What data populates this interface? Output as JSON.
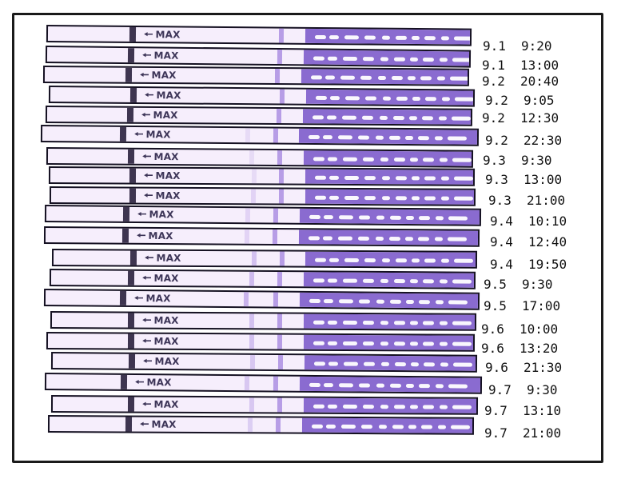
{
  "max_label": "MAX",
  "arrow_glyph": "🠔",
  "colors": {
    "strip_body": "#f6eefc",
    "grip": "#8a6bd0",
    "control_line": "#b79de6",
    "outline": "#151122"
  },
  "readings": [
    {
      "date": "9.1",
      "time": "9:20",
      "test_line": 0.0
    },
    {
      "date": "9.1",
      "time": "13:00",
      "test_line": 0.0
    },
    {
      "date": "9.2",
      "time": "20:40",
      "test_line": 0.0
    },
    {
      "date": "9.2",
      "time": "9:05",
      "test_line": 0.0
    },
    {
      "date": "9.2",
      "time": "12:30",
      "test_line": 0.0
    },
    {
      "date": "9.2",
      "time": "22:30",
      "test_line": 0.1
    },
    {
      "date": "9.3",
      "time": "9:30",
      "test_line": 0.1
    },
    {
      "date": "9.3",
      "time": "13:00",
      "test_line": 0.1
    },
    {
      "date": "9.3",
      "time": "21:00",
      "test_line": 0.15
    },
    {
      "date": "9.4",
      "time": "10:10",
      "test_line": 0.15
    },
    {
      "date": "9.4",
      "time": "12:40",
      "test_line": 0.15
    },
    {
      "date": "9.4",
      "time": "19:50",
      "test_line": 0.3
    },
    {
      "date": "9.5",
      "time": "9:30",
      "test_line": 0.35
    },
    {
      "date": "9.5",
      "time": "17:00",
      "test_line": 0.4
    },
    {
      "date": "9.6",
      "time": "10:00",
      "test_line": 0.3
    },
    {
      "date": "9.6",
      "time": "13:20",
      "test_line": 0.3
    },
    {
      "date": "9.6",
      "time": "21:30",
      "test_line": 0.25
    },
    {
      "date": "9.7",
      "time": "9:30",
      "test_line": 0.25
    },
    {
      "date": "9.7",
      "time": "13:10",
      "test_line": 0.25
    },
    {
      "date": "9.7",
      "time": "21:00",
      "test_line": 0.2
    }
  ]
}
